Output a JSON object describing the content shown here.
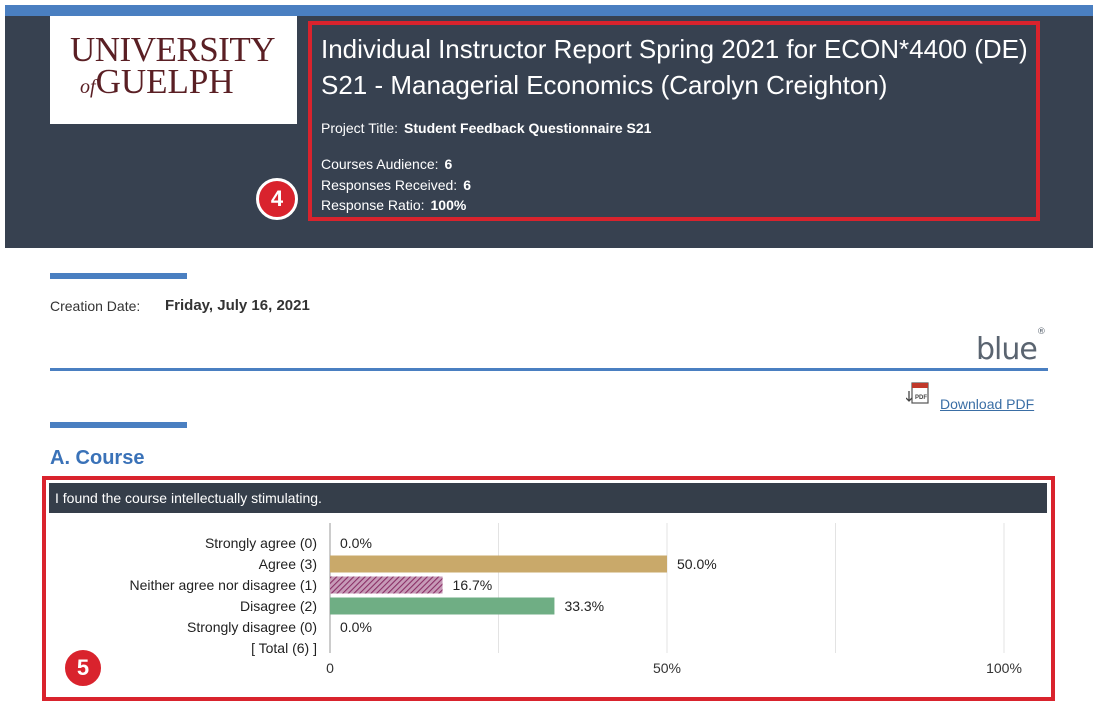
{
  "header": {
    "logo_university": "UNIVERSITY",
    "logo_of": "of",
    "logo_guelph": "GUELPH",
    "title": "Individual Instructor Report Spring 2021 for ECON*4400 (DE) S21 - Managerial Economics (Carolyn Creighton)",
    "project_title_label": "Project Title:",
    "project_title_value": "Student Feedback Questionnaire S21",
    "courses_audience_label": "Courses Audience:",
    "courses_audience_value": "6",
    "responses_received_label": "Responses Received:",
    "responses_received_value": "6",
    "response_ratio_label": "Response Ratio:",
    "response_ratio_value": "100%"
  },
  "annotations": {
    "badge_top": "4",
    "badge_bottom": "5",
    "highlight_color": "#d9232d"
  },
  "creation": {
    "label": "Creation Date:",
    "value": "Friday, July 16, 2021"
  },
  "branding": {
    "blue_logo": "blue",
    "blue_logo_mark": "®"
  },
  "toolbar": {
    "download_pdf_label": "Download PDF",
    "pdf_icon": "pdf-download-icon"
  },
  "section": {
    "title": "A. Course",
    "question": "I found the course intellectually stimulating."
  },
  "colors": {
    "header_bg": "#374150",
    "accent": "#4a7fc1",
    "agree": "#c9a96a",
    "neither": "#9e4a7a",
    "disagree": "#6fae84"
  },
  "chart_data": {
    "type": "bar",
    "orientation": "horizontal",
    "categories": [
      "Strongly agree (0)",
      "Agree (3)",
      "Neither agree nor disagree (1)",
      "Disagree (2)",
      "Strongly disagree (0)",
      "[ Total (6) ]"
    ],
    "values": [
      0.0,
      50.0,
      16.7,
      33.3,
      0.0,
      null
    ],
    "value_labels": [
      "0.0%",
      "50.0%",
      "16.7%",
      "33.3%",
      "0.0%",
      ""
    ],
    "bar_colors": [
      "#c9a96a",
      "#c9a96a",
      "#9e4a7a",
      "#6fae84",
      "#6fae84",
      ""
    ],
    "hatched": [
      false,
      false,
      true,
      false,
      false,
      false
    ],
    "x_ticks": [
      "0",
      "50%",
      "100%"
    ],
    "xlim": [
      0,
      100
    ],
    "grid": true
  }
}
